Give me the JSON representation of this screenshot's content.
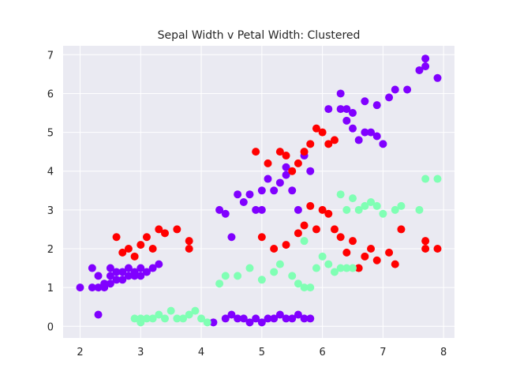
{
  "chart_data": {
    "type": "scatter",
    "title": "Sepal Width v Petal Width: Clustered",
    "xlabel": "",
    "ylabel": "",
    "xlim": [
      1.72,
      8.18
    ],
    "ylim": [
      -0.3,
      7.23
    ],
    "x_ticks": [
      2,
      3,
      4,
      5,
      6,
      7,
      8
    ],
    "y_ticks": [
      0,
      1,
      2,
      3,
      4,
      5,
      6,
      7
    ],
    "grid": true,
    "legend": "none",
    "background": "#eaeaf2",
    "grid_color": "#ffffff",
    "series": [
      {
        "color": "#8000ff",
        "points": [
          [
            2.0,
            1.0
          ],
          [
            2.2,
            1.0
          ],
          [
            2.2,
            1.5
          ],
          [
            2.3,
            0.3
          ],
          [
            2.3,
            1.0
          ],
          [
            2.3,
            1.3
          ],
          [
            2.4,
            1.0
          ],
          [
            2.4,
            1.1
          ],
          [
            2.5,
            1.1
          ],
          [
            2.5,
            1.3
          ],
          [
            2.5,
            1.5
          ],
          [
            2.6,
            1.2
          ],
          [
            2.6,
            1.4
          ],
          [
            2.7,
            1.2
          ],
          [
            2.7,
            1.4
          ],
          [
            2.8,
            1.3
          ],
          [
            2.8,
            1.5
          ],
          [
            2.9,
            1.3
          ],
          [
            2.9,
            1.4
          ],
          [
            3.0,
            1.3
          ],
          [
            3.0,
            1.5
          ],
          [
            3.1,
            1.4
          ],
          [
            3.2,
            1.5
          ],
          [
            3.3,
            1.6
          ],
          [
            4.2,
            0.1
          ],
          [
            4.4,
            0.2
          ],
          [
            4.5,
            0.3
          ],
          [
            4.6,
            0.2
          ],
          [
            4.7,
            0.2
          ],
          [
            4.8,
            0.1
          ],
          [
            4.9,
            0.2
          ],
          [
            5.0,
            0.1
          ],
          [
            5.1,
            0.2
          ],
          [
            5.2,
            0.2
          ],
          [
            5.3,
            0.3
          ],
          [
            5.4,
            0.2
          ],
          [
            5.5,
            0.2
          ],
          [
            5.6,
            0.3
          ],
          [
            5.7,
            0.2
          ],
          [
            5.8,
            0.2
          ],
          [
            4.3,
            3.0
          ],
          [
            4.4,
            2.9
          ],
          [
            4.5,
            2.3
          ],
          [
            4.6,
            3.4
          ],
          [
            4.7,
            3.2
          ],
          [
            4.8,
            3.4
          ],
          [
            4.9,
            3.0
          ],
          [
            5.0,
            3.0
          ],
          [
            5.0,
            3.5
          ],
          [
            5.1,
            3.8
          ],
          [
            5.2,
            3.5
          ],
          [
            5.3,
            3.7
          ],
          [
            5.4,
            3.9
          ],
          [
            5.4,
            4.1
          ],
          [
            5.5,
            3.5
          ],
          [
            5.6,
            3.0
          ],
          [
            5.7,
            4.4
          ],
          [
            5.8,
            4.0
          ],
          [
            6.3,
            6.0
          ],
          [
            6.1,
            5.6
          ],
          [
            6.3,
            5.6
          ],
          [
            6.4,
            5.6
          ],
          [
            6.5,
            5.5
          ],
          [
            6.7,
            5.8
          ],
          [
            6.9,
            5.7
          ],
          [
            7.1,
            5.9
          ],
          [
            7.2,
            6.1
          ],
          [
            7.4,
            6.1
          ],
          [
            7.6,
            6.6
          ],
          [
            7.7,
            6.7
          ],
          [
            7.7,
            6.9
          ],
          [
            7.9,
            6.4
          ],
          [
            6.4,
            5.3
          ],
          [
            6.5,
            5.1
          ],
          [
            6.6,
            4.8
          ],
          [
            6.7,
            5.0
          ],
          [
            6.8,
            5.0
          ],
          [
            6.9,
            4.9
          ],
          [
            7.0,
            4.7
          ]
        ]
      },
      {
        "color": "#ff0000",
        "points": [
          [
            2.6,
            2.3
          ],
          [
            2.7,
            1.9
          ],
          [
            2.8,
            2.0
          ],
          [
            2.9,
            1.8
          ],
          [
            3.0,
            2.1
          ],
          [
            3.1,
            2.3
          ],
          [
            3.2,
            2.0
          ],
          [
            3.3,
            2.5
          ],
          [
            3.4,
            2.4
          ],
          [
            3.6,
            2.5
          ],
          [
            3.8,
            2.2
          ],
          [
            3.8,
            2.0
          ],
          [
            4.9,
            4.5
          ],
          [
            5.1,
            4.2
          ],
          [
            5.3,
            4.5
          ],
          [
            5.4,
            4.4
          ],
          [
            5.5,
            4.0
          ],
          [
            5.6,
            4.2
          ],
          [
            5.7,
            4.5
          ],
          [
            5.8,
            4.7
          ],
          [
            5.9,
            5.1
          ],
          [
            6.0,
            5.0
          ],
          [
            6.1,
            4.7
          ],
          [
            6.2,
            4.8
          ],
          [
            5.0,
            2.3
          ],
          [
            5.2,
            2.0
          ],
          [
            5.4,
            2.1
          ],
          [
            5.6,
            2.4
          ],
          [
            5.7,
            2.6
          ],
          [
            5.8,
            3.1
          ],
          [
            5.9,
            2.5
          ],
          [
            6.0,
            3.0
          ],
          [
            6.1,
            2.9
          ],
          [
            6.2,
            2.5
          ],
          [
            6.3,
            2.3
          ],
          [
            6.4,
            1.9
          ],
          [
            6.5,
            2.2
          ],
          [
            6.6,
            1.5
          ],
          [
            6.7,
            1.8
          ],
          [
            6.8,
            2.0
          ],
          [
            6.9,
            1.7
          ],
          [
            7.1,
            1.9
          ],
          [
            7.2,
            1.6
          ],
          [
            7.3,
            2.5
          ],
          [
            7.7,
            2.2
          ],
          [
            7.7,
            2.0
          ],
          [
            7.9,
            2.0
          ]
        ]
      },
      {
        "color": "#80ffb4",
        "points": [
          [
            2.9,
            0.2
          ],
          [
            3.0,
            0.1
          ],
          [
            3.0,
            0.2
          ],
          [
            3.1,
            0.2
          ],
          [
            3.2,
            0.2
          ],
          [
            3.3,
            0.3
          ],
          [
            3.4,
            0.2
          ],
          [
            3.5,
            0.4
          ],
          [
            3.6,
            0.2
          ],
          [
            3.7,
            0.2
          ],
          [
            3.8,
            0.3
          ],
          [
            3.9,
            0.4
          ],
          [
            4.0,
            0.2
          ],
          [
            4.1,
            0.1
          ],
          [
            4.3,
            1.1
          ],
          [
            4.4,
            1.3
          ],
          [
            4.6,
            1.3
          ],
          [
            4.8,
            1.5
          ],
          [
            5.0,
            1.2
          ],
          [
            5.2,
            1.4
          ],
          [
            5.3,
            1.6
          ],
          [
            5.5,
            1.3
          ],
          [
            5.6,
            1.1
          ],
          [
            5.7,
            1.0
          ],
          [
            5.8,
            1.0
          ],
          [
            5.7,
            2.2
          ],
          [
            5.9,
            1.5
          ],
          [
            6.0,
            1.8
          ],
          [
            6.1,
            1.6
          ],
          [
            6.2,
            1.4
          ],
          [
            6.3,
            1.5
          ],
          [
            6.4,
            1.5
          ],
          [
            6.5,
            1.5
          ],
          [
            6.3,
            3.4
          ],
          [
            6.4,
            3.0
          ],
          [
            6.5,
            3.3
          ],
          [
            6.6,
            3.0
          ],
          [
            6.7,
            3.1
          ],
          [
            6.8,
            3.2
          ],
          [
            6.9,
            3.1
          ],
          [
            7.0,
            2.9
          ],
          [
            7.2,
            3.0
          ],
          [
            7.3,
            3.1
          ],
          [
            7.6,
            3.0
          ],
          [
            7.7,
            3.8
          ],
          [
            7.9,
            3.8
          ]
        ]
      }
    ]
  }
}
